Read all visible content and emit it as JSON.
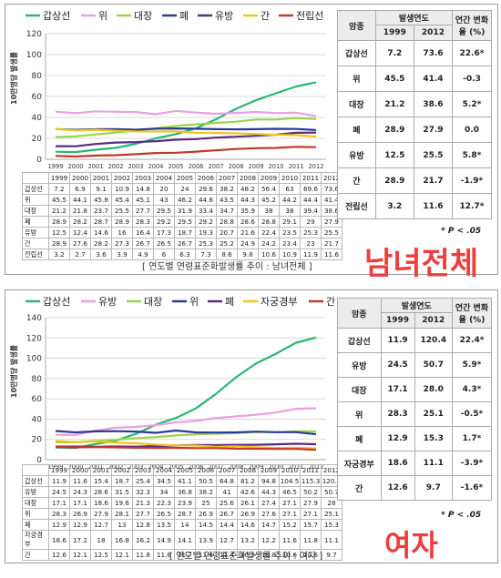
{
  "chart_data": [
    {
      "type": "line",
      "ylabel": "10만명당 발생률",
      "ylim": [
        0,
        120
      ],
      "yticks": [
        0,
        20,
        40,
        60,
        80,
        100,
        120
      ],
      "x": [
        "1999",
        "2000",
        "2001",
        "2002",
        "2003",
        "2004",
        "2005",
        "2006",
        "2007",
        "2008",
        "2009",
        "2010",
        "2011",
        "2012"
      ],
      "legend_position": "top",
      "series": [
        {
          "name": "갑상선",
          "color": "#2bb673",
          "values": [
            7.2,
            6.9,
            9.1,
            10.9,
            14.8,
            20.0,
            24.0,
            29.6,
            38.2,
            48.2,
            56.4,
            63.0,
            69.6,
            73.6
          ]
        },
        {
          "name": "위",
          "color": "#e8a0e0",
          "values": [
            45.5,
            44.1,
            45.8,
            45.4,
            45.1,
            43.0,
            46.2,
            44.6,
            43.5,
            44.3,
            45.2,
            44.2,
            44.4,
            41.4
          ]
        },
        {
          "name": "대장",
          "color": "#9ad34c",
          "values": [
            21.2,
            21.8,
            23.7,
            25.5,
            27.7,
            29.5,
            31.9,
            33.4,
            34.7,
            35.9,
            38.0,
            38.0,
            39.4,
            38.6
          ]
        },
        {
          "name": "폐",
          "color": "#2a3a9a",
          "values": [
            28.9,
            28.2,
            28.7,
            28.9,
            28.3,
            29.2,
            29.5,
            29.2,
            28.8,
            28.6,
            28.8,
            29.1,
            29.0,
            27.9
          ]
        },
        {
          "name": "유방",
          "color": "#5a2a82",
          "values": [
            12.5,
            12.4,
            14.6,
            16.0,
            16.4,
            17.3,
            18.7,
            19.3,
            20.7,
            21.6,
            22.4,
            23.5,
            25.3,
            25.5
          ]
        },
        {
          "name": "간",
          "color": "#f0c419",
          "values": [
            28.9,
            27.6,
            28.2,
            27.3,
            26.7,
            26.5,
            26.7,
            25.3,
            25.2,
            24.9,
            24.2,
            23.4,
            23.0,
            21.7
          ]
        },
        {
          "name": "전립선",
          "color": "#c0392b",
          "values": [
            3.2,
            2.7,
            3.6,
            3.9,
            4.9,
            6.0,
            6.3,
            7.3,
            8.6,
            9.8,
            10.6,
            10.9,
            11.9,
            11.6
          ]
        }
      ],
      "summary": {
        "headers": {
          "col1": "암종",
          "col2": "발생연도",
          "col3": "연간 변화율 (%)",
          "y1": "1999",
          "y2": "2012"
        },
        "rows": [
          {
            "name": "갑상선",
            "v1999": "7.2",
            "v2012": "73.6",
            "change": "22.6*"
          },
          {
            "name": "위",
            "v1999": "45.5",
            "v2012": "41.4",
            "change": "-0.3"
          },
          {
            "name": "대장",
            "v1999": "21.2",
            "v2012": "38.6",
            "change": "5.2*"
          },
          {
            "name": "폐",
            "v1999": "28.9",
            "v2012": "27.9",
            "change": "0.0"
          },
          {
            "name": "유방",
            "v1999": "12.5",
            "v2012": "25.5",
            "change": "5.8*"
          },
          {
            "name": "간",
            "v1999": "28.9",
            "v2012": "21.7",
            "change": "-1.9*"
          },
          {
            "name": "전립선",
            "v1999": "3.2",
            "v2012": "11.6",
            "change": "12.7*"
          }
        ],
        "note": "* P < .05"
      },
      "side_label": "남녀전체",
      "caption": "[ 연도별 연령표준화발생률 추이 : 남녀전체 ]"
    },
    {
      "type": "line",
      "ylabel": "10만명당 발생률",
      "ylim": [
        0,
        140
      ],
      "yticks": [
        0,
        20,
        40,
        60,
        80,
        100,
        120,
        140
      ],
      "x": [
        "1999",
        "2000",
        "2001",
        "2002",
        "2003",
        "2004",
        "2005",
        "2006",
        "2007",
        "2008",
        "2009",
        "2010",
        "2011",
        "2012"
      ],
      "legend_position": "top",
      "series": [
        {
          "name": "갑상선",
          "color": "#2bb673",
          "values": [
            11.9,
            11.6,
            15.4,
            18.7,
            25.4,
            34.5,
            41.1,
            50.5,
            64.8,
            81.2,
            94.8,
            104.5,
            115.3,
            120.4
          ]
        },
        {
          "name": "유방",
          "color": "#e8a0e0",
          "values": [
            24.5,
            24.3,
            28.6,
            31.5,
            32.3,
            34.0,
            36.8,
            38.2,
            41.0,
            42.6,
            44.3,
            46.5,
            50.2,
            50.7
          ]
        },
        {
          "name": "대장",
          "color": "#9ad34c",
          "values": [
            17.1,
            17.1,
            18.6,
            19.6,
            21.3,
            22.3,
            23.9,
            25.0,
            25.6,
            26.1,
            27.4,
            27.1,
            27.9,
            28.0
          ]
        },
        {
          "name": "위",
          "color": "#2a3a9a",
          "values": [
            28.3,
            26.9,
            27.9,
            28.1,
            27.7,
            26.5,
            28.7,
            26.9,
            26.7,
            26.9,
            27.6,
            27.1,
            27.1,
            25.1
          ]
        },
        {
          "name": "폐",
          "color": "#5a2a82",
          "values": [
            12.9,
            12.9,
            12.7,
            13.0,
            12.8,
            13.5,
            14.0,
            14.5,
            14.4,
            14.6,
            14.7,
            15.2,
            15.7,
            15.3
          ]
        },
        {
          "name": "자궁경부",
          "color": "#f0c419",
          "values": [
            18.6,
            17.2,
            18.0,
            16.8,
            16.2,
            14.9,
            14.1,
            13.9,
            12.7,
            13.2,
            12.2,
            11.6,
            11.8,
            11.1
          ]
        },
        {
          "name": "간",
          "color": "#c0392b",
          "values": [
            12.6,
            12.1,
            12.5,
            12.1,
            11.8,
            11.6,
            11.7,
            11.4,
            11.4,
            10.9,
            10.8,
            10.6,
            10.6,
            9.7
          ]
        }
      ],
      "summary": {
        "headers": {
          "col1": "암종",
          "col2": "발생연도",
          "col3": "연간 변화율 (%)",
          "y1": "1999",
          "y2": "2012"
        },
        "rows": [
          {
            "name": "갑상선",
            "v1999": "11.9",
            "v2012": "120.4",
            "change": "22.4*"
          },
          {
            "name": "유방",
            "v1999": "24.5",
            "v2012": "50.7",
            "change": "5.9*"
          },
          {
            "name": "대장",
            "v1999": "17.1",
            "v2012": "28.0",
            "change": "4.3*"
          },
          {
            "name": "위",
            "v1999": "28.3",
            "v2012": "25.1",
            "change": "-0.5*"
          },
          {
            "name": "폐",
            "v1999": "12.9",
            "v2012": "15.3",
            "change": "1.7*"
          },
          {
            "name": "자궁경부",
            "v1999": "18.6",
            "v2012": "11.1",
            "change": "-3.9*"
          },
          {
            "name": "간",
            "v1999": "12.6",
            "v2012": "9.7",
            "change": "-1.6*"
          }
        ],
        "note": "* P < .05"
      },
      "side_label": "여자",
      "caption": "[ 연도별 연령표준화발생률 추이 : 여자 ]"
    }
  ]
}
